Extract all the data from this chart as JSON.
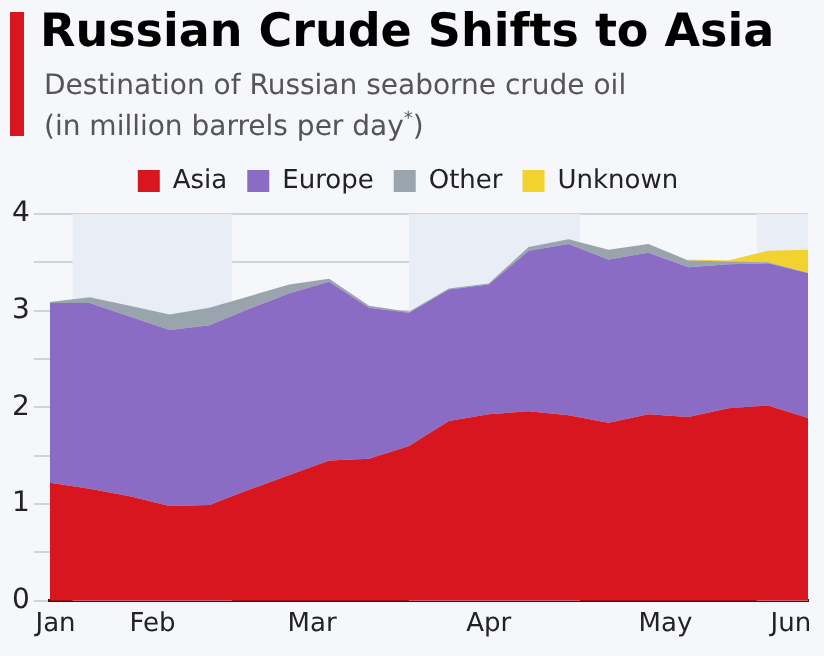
{
  "chart_data": {
    "type": "area",
    "title": "Russian Crude Shifts to Asia",
    "subtitle": "Destination of Russian seaborne crude oil (in million barrels per day$^{*}$)",
    "x": [
      "--01-28",
      "--02-04",
      "--02-11",
      "--02-18",
      "--02-25",
      "--03-04",
      "--03-11",
      "--03-18",
      "--03-25",
      "--04-01",
      "--04-08",
      "--04-15",
      "--04-22",
      "--04-29",
      "--05-06",
      "--05-13",
      "--05-20",
      "--05-27",
      "--06-03",
      "--06-10"
    ],
    "series": [
      {
        "name": "Asia",
        "color": "#d7161f",
        "values": [
          1.22,
          1.16,
          1.08,
          0.98,
          0.99,
          1.15,
          1.3,
          1.45,
          1.47,
          1.6,
          1.86,
          1.93,
          1.96,
          1.92,
          1.84,
          1.93,
          1.9,
          1.99,
          2.02,
          1.89
        ]
      },
      {
        "name": "Europe",
        "color": "#8b6cc4",
        "values": [
          1.86,
          1.92,
          1.86,
          1.82,
          1.86,
          1.87,
          1.88,
          1.85,
          1.56,
          1.38,
          1.36,
          1.34,
          1.66,
          1.77,
          1.69,
          1.67,
          1.55,
          1.49,
          1.47,
          1.5
        ]
      },
      {
        "name": "Other",
        "color": "#9aa4ad",
        "values": [
          0.01,
          0.06,
          0.11,
          0.16,
          0.18,
          0.13,
          0.09,
          0.03,
          0.02,
          0.01,
          0.01,
          0.01,
          0.04,
          0.05,
          0.1,
          0.09,
          0.07,
          0.03,
          0.01,
          0.0
        ]
      },
      {
        "name": "Unknown",
        "color": "#f2d22e",
        "values": [
          null,
          null,
          null,
          null,
          null,
          null,
          null,
          null,
          null,
          null,
          null,
          null,
          null,
          null,
          null,
          null,
          0.01,
          0.01,
          0.12,
          0.24
        ]
      }
    ],
    "stacked": true,
    "xlim": [
      "--01-28",
      "--06-10"
    ],
    "xticks": [
      {
        "value": "--01-29",
        "label": "Jan"
      },
      {
        "value": "--02-15",
        "label": "Feb"
      },
      {
        "value": "--03-15",
        "label": "Mar"
      },
      {
        "value": "--04-15",
        "label": "Apr"
      },
      {
        "value": "--05-16",
        "label": "May"
      },
      {
        "value": "--06-07",
        "label": "Jun"
      }
    ],
    "ylim": [
      0,
      4
    ],
    "yticks": [
      0,
      {
        "value": 0.5,
        "label": null
      },
      1,
      {
        "value": 1.5,
        "label": null
      },
      2,
      {
        "value": 2.5,
        "label": null
      },
      3,
      {
        "value": 3.5,
        "label": null
      },
      4
    ],
    "bands": [
      {
        "axis": "x",
        "from": "--02-01",
        "to": "--03-01",
        "color": "#e8edf6"
      },
      {
        "axis": "x",
        "from": "--04-01",
        "to": "--05-01",
        "color": "#e8edf6"
      },
      {
        "axis": "x",
        "from": "--06-01",
        "to": "--06-10",
        "color": "#e8edf6"
      }
    ],
    "grid": "y",
    "legend": "top"
  }
}
